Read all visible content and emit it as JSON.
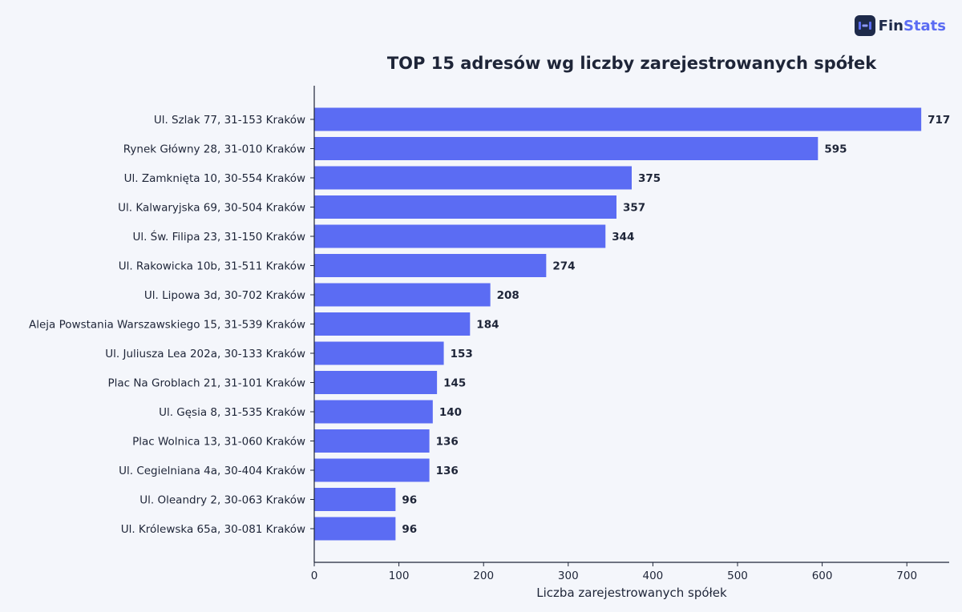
{
  "brand": {
    "name_part1": "Fin",
    "name_part2": "Stats",
    "icon": "finstats-logo-icon",
    "colors": {
      "dark": "#1e2a4a",
      "accent": "#5b6cf3"
    }
  },
  "chart_data": {
    "type": "bar",
    "orientation": "horizontal",
    "title": "TOP 15 adresów wg liczby zarejestrowanych spółek",
    "xlabel": "Liczba zarejestrowanych spółek",
    "ylabel": "",
    "xlim": [
      0,
      750
    ],
    "xticks": [
      0,
      100,
      200,
      300,
      400,
      500,
      600,
      700
    ],
    "grid": false,
    "bar_color": "#5b6cf3",
    "data_labels": true,
    "categories": [
      "Ul. Szlak 77, 31-153 Kraków",
      "Rynek Główny 28, 31-010 Kraków",
      "Ul. Zamknięta 10, 30-554 Kraków",
      "Ul. Kalwaryjska 69, 30-504 Kraków",
      "Ul. Św. Filipa 23, 31-150 Kraków",
      "Ul. Rakowicka 10b, 31-511 Kraków",
      "Ul. Lipowa 3d, 30-702 Kraków",
      "Aleja Powstania Warszawskiego 15, 31-539 Kraków",
      "Ul. Juliusza Lea 202a, 30-133 Kraków",
      "Plac Na Groblach 21, 31-101 Kraków",
      "Ul. Gęsia 8, 31-535 Kraków",
      "Plac Wolnica 13, 31-060 Kraków",
      "Ul. Cegielniana 4a, 30-404 Kraków",
      "Ul. Oleandry 2, 30-063 Kraków",
      "Ul. Królewska 65a, 30-081 Kraków"
    ],
    "values": [
      717,
      595,
      375,
      357,
      344,
      274,
      208,
      184,
      153,
      145,
      140,
      136,
      136,
      96,
      96
    ]
  }
}
